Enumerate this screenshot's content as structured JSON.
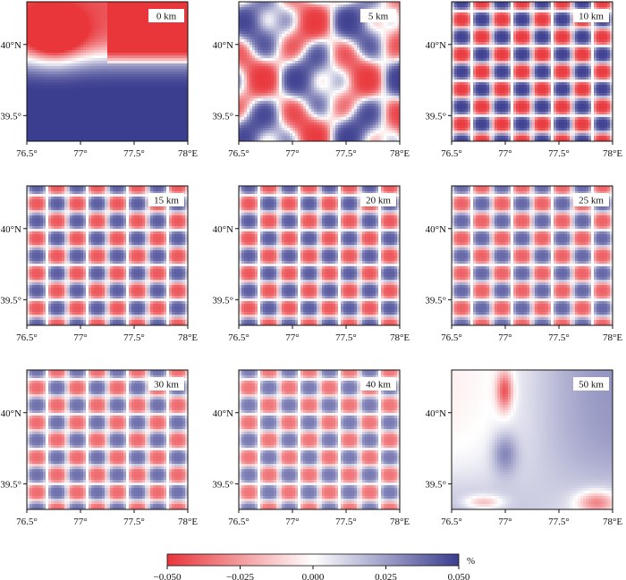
{
  "chart_data": {
    "type": "heatmap",
    "description_units": "%",
    "panels": [
      {
        "label": "0 km",
        "field": {
          "kind": "blocks"
        }
      },
      {
        "label": "5 km",
        "field": {
          "kind": "patchy"
        }
      },
      {
        "label": "10 km",
        "field": {
          "kind": "checker",
          "amp": 1.0
        }
      },
      {
        "label": "15 km",
        "field": {
          "kind": "checker",
          "amp": 0.85
        }
      },
      {
        "label": "20 km",
        "field": {
          "kind": "checker",
          "amp": 0.85
        }
      },
      {
        "label": "25 km",
        "field": {
          "kind": "checker",
          "amp": 0.8
        }
      },
      {
        "label": "30 km",
        "field": {
          "kind": "checker",
          "amp": 0.75
        }
      },
      {
        "label": "40 km",
        "field": {
          "kind": "checker",
          "amp": 0.7
        }
      },
      {
        "label": "50 km",
        "field": {
          "kind": "smooth"
        }
      }
    ],
    "x_ticks": [
      "76.5°",
      "77°",
      "77.5°",
      "78°E"
    ],
    "x_tick_values": [
      76.5,
      77.0,
      77.5,
      78.0
    ],
    "y_ticks": [
      "40°N",
      "39.5°"
    ],
    "y_tick_values": [
      40.0,
      39.5
    ],
    "xlim": [
      76.5,
      78.0
    ],
    "ylim": [
      39.32,
      40.3
    ],
    "colorbar": {
      "ticks": [
        "−0.050",
        "−0.025",
        "0.000",
        "0.025",
        "0.050"
      ],
      "tick_values": [
        -0.05,
        -0.025,
        0.0,
        0.025,
        0.05
      ],
      "unit": "%",
      "colors": [
        "#e8363b",
        "#ffffff",
        "#3b3d8f"
      ]
    }
  }
}
